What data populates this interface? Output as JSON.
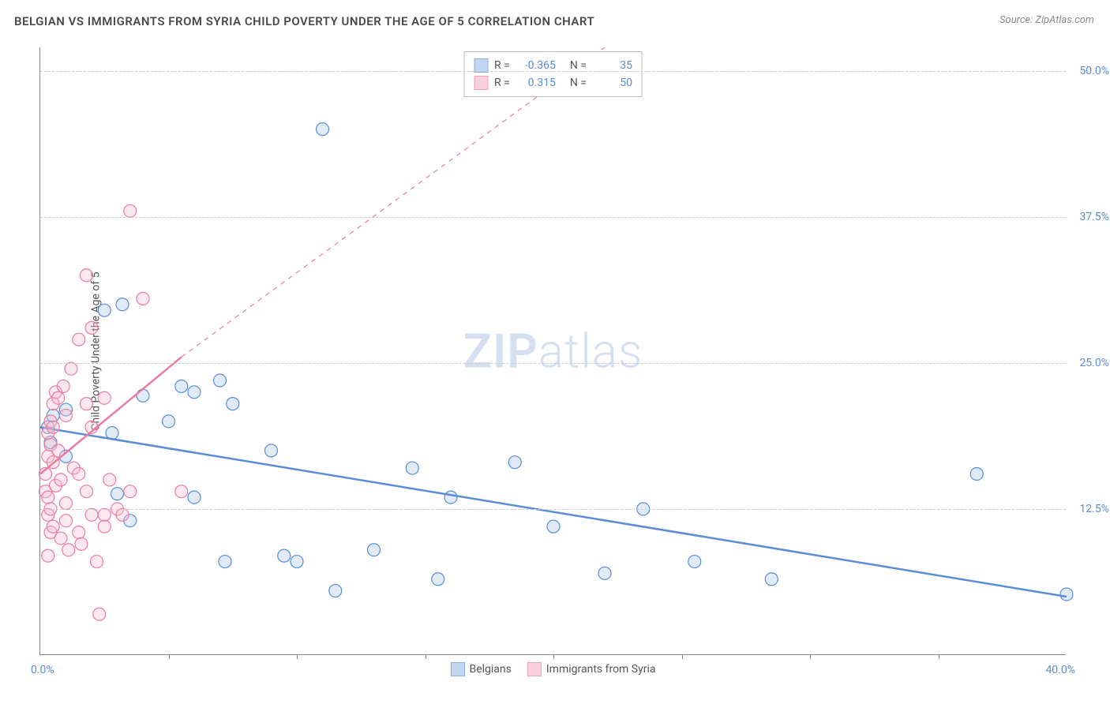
{
  "title": "BELGIAN VS IMMIGRANTS FROM SYRIA CHILD POVERTY UNDER THE AGE OF 5 CORRELATION CHART",
  "source": "Source: ZipAtlas.com",
  "yaxis_title": "Child Poverty Under the Age of 5",
  "watermark_bold": "ZIP",
  "watermark_light": "atlas",
  "chart": {
    "type": "scatter",
    "xlim": [
      0,
      40
    ],
    "ylim": [
      0,
      52
    ],
    "x_label_min": "0.0%",
    "x_label_max": "40.0%",
    "y_ticks": [
      {
        "value": 12.5,
        "label": "12.5%"
      },
      {
        "value": 25.0,
        "label": "25.0%"
      },
      {
        "value": 37.5,
        "label": "37.5%"
      },
      {
        "value": 50.0,
        "label": "50.0%"
      }
    ],
    "x_tick_positions": [
      5,
      10,
      15,
      20,
      25,
      30,
      35
    ],
    "background_color": "#ffffff",
    "grid_color": "#cccccc",
    "marker_radius": 8,
    "marker_stroke_width": 1.2,
    "marker_fill_opacity": 0.35,
    "series": [
      {
        "name": "Belgians",
        "color": "#5a8dd6",
        "fill": "#a8c5eb",
        "R": "-0.365",
        "N": "35",
        "trend": {
          "x1": 0,
          "y1": 19.5,
          "x2": 40,
          "y2": 5.0,
          "width": 2.5,
          "dash": "none"
        },
        "points": [
          [
            0.3,
            19.5
          ],
          [
            0.4,
            18.2
          ],
          [
            0.5,
            20.5
          ],
          [
            1.0,
            17.0
          ],
          [
            1.0,
            21.0
          ],
          [
            2.5,
            29.5
          ],
          [
            3.2,
            30.0
          ],
          [
            2.8,
            19.0
          ],
          [
            3.0,
            13.8
          ],
          [
            3.5,
            11.5
          ],
          [
            4.0,
            22.2
          ],
          [
            5.0,
            20.0
          ],
          [
            5.5,
            23.0
          ],
          [
            6.0,
            22.5
          ],
          [
            6.0,
            13.5
          ],
          [
            7.0,
            23.5
          ],
          [
            7.5,
            21.5
          ],
          [
            7.2,
            8.0
          ],
          [
            9.0,
            17.5
          ],
          [
            9.5,
            8.5
          ],
          [
            10.0,
            8.0
          ],
          [
            11.0,
            45.0
          ],
          [
            11.5,
            5.5
          ],
          [
            13.0,
            9.0
          ],
          [
            14.5,
            16.0
          ],
          [
            15.5,
            6.5
          ],
          [
            16.0,
            13.5
          ],
          [
            18.5,
            16.5
          ],
          [
            20.0,
            11.0
          ],
          [
            22.0,
            7.0
          ],
          [
            23.5,
            12.5
          ],
          [
            25.5,
            8.0
          ],
          [
            28.5,
            6.5
          ],
          [
            36.5,
            15.5
          ],
          [
            40.0,
            5.2
          ]
        ]
      },
      {
        "name": "Immigrants from Syria",
        "color": "#e87da0",
        "fill": "#f5bccf",
        "R": "0.315",
        "N": "50",
        "trend": {
          "x1": 0,
          "y1": 15.5,
          "x2": 5.5,
          "y2": 25.5,
          "width": 2.5,
          "dash": "none"
        },
        "trend_ext": {
          "x1": 5.5,
          "y1": 25.5,
          "x2": 22,
          "y2": 52,
          "width": 1.2,
          "dash": "6,6"
        },
        "points": [
          [
            0.2,
            14.0
          ],
          [
            0.2,
            15.5
          ],
          [
            0.3,
            17.0
          ],
          [
            0.3,
            12.0
          ],
          [
            0.3,
            13.5
          ],
          [
            0.3,
            19.0
          ],
          [
            0.4,
            18.0
          ],
          [
            0.4,
            20.0
          ],
          [
            0.4,
            10.5
          ],
          [
            0.4,
            12.5
          ],
          [
            0.5,
            21.5
          ],
          [
            0.5,
            16.5
          ],
          [
            0.5,
            19.5
          ],
          [
            0.5,
            11.0
          ],
          [
            0.6,
            22.5
          ],
          [
            0.6,
            14.5
          ],
          [
            0.7,
            22.0
          ],
          [
            0.7,
            17.5
          ],
          [
            0.8,
            15.0
          ],
          [
            0.8,
            10.0
          ],
          [
            0.9,
            23.0
          ],
          [
            1.0,
            11.5
          ],
          [
            1.0,
            13.0
          ],
          [
            1.0,
            20.5
          ],
          [
            1.1,
            9.0
          ],
          [
            1.2,
            24.5
          ],
          [
            1.3,
            16.0
          ],
          [
            1.5,
            27.0
          ],
          [
            1.5,
            15.5
          ],
          [
            1.5,
            10.5
          ],
          [
            1.8,
            32.5
          ],
          [
            1.8,
            14.0
          ],
          [
            1.8,
            21.5
          ],
          [
            2.0,
            28.0
          ],
          [
            2.0,
            12.0
          ],
          [
            2.0,
            19.5
          ],
          [
            2.2,
            8.0
          ],
          [
            2.3,
            3.5
          ],
          [
            2.5,
            12.0
          ],
          [
            2.5,
            22.0
          ],
          [
            2.5,
            11.0
          ],
          [
            2.7,
            15.0
          ],
          [
            3.0,
            12.5
          ],
          [
            3.2,
            12.0
          ],
          [
            3.5,
            38.0
          ],
          [
            3.5,
            14.0
          ],
          [
            4.0,
            30.5
          ],
          [
            5.5,
            14.0
          ],
          [
            0.3,
            8.5
          ],
          [
            1.6,
            9.5
          ]
        ]
      }
    ]
  },
  "legend_labels": {
    "R": "R =",
    "N": "N ="
  }
}
